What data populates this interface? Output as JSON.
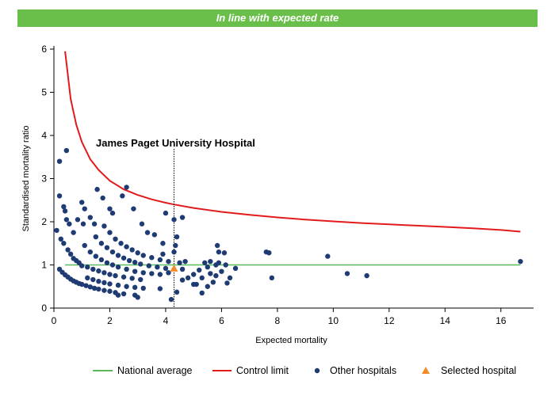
{
  "banner": {
    "text": "In line with expected rate",
    "color": "#6abf4b"
  },
  "colors": {
    "national_average": "#5cb85c",
    "control_limit": "#e31a1c",
    "other_hospitals": "#1f3b73",
    "selected_hospital": "#f28c28",
    "axis": "#000000"
  },
  "chart_data": {
    "type": "scatter",
    "title": "In line with expected rate",
    "xlabel": "Expected mortality",
    "ylabel": "Standardised mortality ratio",
    "xlim": [
      0,
      17
    ],
    "ylim": [
      0,
      6
    ],
    "xticks": [
      0,
      2,
      4,
      6,
      8,
      10,
      12,
      14,
      16
    ],
    "yticks": [
      0,
      1,
      2,
      3,
      4,
      5,
      6
    ],
    "grid": false,
    "legend_position": "bottom",
    "annotation": {
      "text": "James Paget University Hospital",
      "x": 4.3
    },
    "legend": [
      "National average",
      "Control limit",
      "Other hospitals",
      "Selected hospital"
    ],
    "national_average": {
      "name": "National average",
      "y": 1,
      "x_range": [
        0.4,
        16.7
      ]
    },
    "control_limit": {
      "name": "Control limit",
      "x": [
        0.4,
        0.6,
        0.8,
        1.0,
        1.3,
        1.6,
        2.0,
        2.5,
        3.0,
        3.5,
        4.0,
        4.3,
        5.0,
        6.0,
        7.0,
        8.0,
        9.0,
        10.0,
        11.0,
        12.0,
        13.0,
        14.0,
        15.0,
        16.0,
        16.7
      ],
      "y": [
        5.95,
        4.85,
        4.25,
        3.85,
        3.45,
        3.2,
        2.95,
        2.75,
        2.62,
        2.52,
        2.44,
        2.4,
        2.32,
        2.23,
        2.16,
        2.1,
        2.05,
        2.01,
        1.97,
        1.94,
        1.91,
        1.88,
        1.85,
        1.81,
        1.77
      ]
    },
    "selected_hospital": {
      "name": "Selected hospital",
      "x": 4.3,
      "y": 0.92
    },
    "other_hospitals": {
      "name": "Other hospitals",
      "points": [
        [
          0.2,
          3.4
        ],
        [
          0.45,
          3.65
        ],
        [
          0.2,
          2.6
        ],
        [
          0.35,
          2.35
        ],
        [
          0.4,
          2.25
        ],
        [
          0.45,
          2.05
        ],
        [
          0.55,
          1.95
        ],
        [
          0.7,
          1.75
        ],
        [
          0.85,
          2.05
        ],
        [
          1.0,
          2.45
        ],
        [
          1.1,
          2.3
        ],
        [
          1.05,
          1.95
        ],
        [
          1.3,
          2.1
        ],
        [
          1.45,
          1.95
        ],
        [
          1.55,
          2.75
        ],
        [
          1.75,
          2.55
        ],
        [
          2.0,
          2.3
        ],
        [
          2.1,
          2.2
        ],
        [
          2.45,
          2.6
        ],
        [
          2.6,
          2.8
        ],
        [
          2.85,
          2.3
        ],
        [
          3.15,
          1.95
        ],
        [
          3.35,
          1.75
        ],
        [
          3.6,
          1.7
        ],
        [
          3.9,
          1.5
        ],
        [
          4.0,
          2.2
        ],
        [
          4.3,
          2.05
        ],
        [
          4.6,
          2.1
        ],
        [
          4.4,
          1.65
        ],
        [
          4.35,
          1.45
        ],
        [
          0.1,
          1.8
        ],
        [
          0.25,
          1.6
        ],
        [
          0.35,
          1.5
        ],
        [
          0.5,
          1.35
        ],
        [
          0.6,
          1.25
        ],
        [
          0.7,
          1.15
        ],
        [
          0.8,
          1.1
        ],
        [
          0.9,
          1.05
        ],
        [
          1.0,
          0.98
        ],
        [
          1.2,
          0.95
        ],
        [
          1.4,
          0.9
        ],
        [
          1.6,
          0.86
        ],
        [
          1.8,
          0.82
        ],
        [
          2.0,
          0.78
        ],
        [
          2.2,
          0.75
        ],
        [
          2.5,
          0.72
        ],
        [
          2.8,
          0.69
        ],
        [
          3.1,
          0.66
        ],
        [
          0.2,
          0.9
        ],
        [
          0.3,
          0.83
        ],
        [
          0.4,
          0.77
        ],
        [
          0.5,
          0.72
        ],
        [
          0.6,
          0.67
        ],
        [
          0.7,
          0.63
        ],
        [
          0.8,
          0.6
        ],
        [
          0.9,
          0.57
        ],
        [
          1.0,
          0.55
        ],
        [
          1.15,
          0.52
        ],
        [
          1.3,
          0.49
        ],
        [
          1.45,
          0.46
        ],
        [
          1.6,
          0.44
        ],
        [
          1.8,
          0.41
        ],
        [
          2.0,
          0.39
        ],
        [
          2.2,
          0.36
        ],
        [
          2.5,
          0.33
        ],
        [
          2.9,
          0.3
        ],
        [
          1.1,
          1.45
        ],
        [
          1.3,
          1.3
        ],
        [
          1.5,
          1.2
        ],
        [
          1.7,
          1.12
        ],
        [
          1.9,
          1.05
        ],
        [
          2.1,
          1.0
        ],
        [
          2.3,
          0.95
        ],
        [
          2.6,
          0.9
        ],
        [
          2.9,
          0.85
        ],
        [
          3.2,
          0.82
        ],
        [
          3.5,
          0.8
        ],
        [
          3.8,
          0.78
        ],
        [
          1.5,
          1.65
        ],
        [
          1.7,
          1.5
        ],
        [
          1.9,
          1.4
        ],
        [
          2.1,
          1.3
        ],
        [
          2.3,
          1.22
        ],
        [
          2.5,
          1.16
        ],
        [
          2.7,
          1.1
        ],
        [
          2.9,
          1.06
        ],
        [
          3.1,
          1.02
        ],
        [
          3.4,
          0.98
        ],
        [
          3.7,
          0.95
        ],
        [
          4.0,
          0.92
        ],
        [
          1.8,
          1.9
        ],
        [
          2.0,
          1.75
        ],
        [
          2.2,
          1.6
        ],
        [
          2.4,
          1.5
        ],
        [
          2.6,
          1.42
        ],
        [
          2.8,
          1.35
        ],
        [
          3.0,
          1.28
        ],
        [
          3.2,
          1.22
        ],
        [
          3.5,
          1.17
        ],
        [
          3.8,
          1.12
        ],
        [
          4.1,
          1.08
        ],
        [
          1.2,
          0.7
        ],
        [
          1.4,
          0.66
        ],
        [
          1.6,
          0.62
        ],
        [
          1.8,
          0.59
        ],
        [
          2.0,
          0.56
        ],
        [
          2.3,
          0.53
        ],
        [
          2.6,
          0.5
        ],
        [
          2.9,
          0.48
        ],
        [
          3.2,
          0.46
        ],
        [
          3.0,
          0.25
        ],
        [
          2.3,
          0.3
        ],
        [
          3.8,
          0.45
        ],
        [
          4.2,
          0.2
        ],
        [
          4.4,
          0.37
        ],
        [
          4.6,
          0.65
        ],
        [
          4.8,
          0.7
        ],
        [
          4.5,
          1.05
        ],
        [
          4.7,
          1.08
        ],
        [
          4.6,
          0.9
        ],
        [
          4.1,
          0.82
        ],
        [
          3.9,
          1.25
        ],
        [
          4.3,
          1.3
        ],
        [
          5.0,
          0.55
        ],
        [
          5.3,
          0.35
        ],
        [
          5.5,
          0.5
        ],
        [
          5.2,
          0.88
        ],
        [
          5.4,
          1.05
        ],
        [
          5.5,
          0.95
        ],
        [
          5.6,
          0.8
        ],
        [
          5.6,
          1.08
        ],
        [
          5.7,
          0.6
        ],
        [
          5.8,
          1.0
        ],
        [
          5.9,
          1.05
        ],
        [
          5.85,
          1.45
        ],
        [
          5.9,
          1.3
        ],
        [
          6.0,
          0.85
        ],
        [
          6.1,
          1.28
        ],
        [
          6.2,
          0.58
        ],
        [
          6.3,
          0.7
        ],
        [
          6.5,
          0.92
        ],
        [
          5.1,
          0.55
        ],
        [
          5.3,
          0.7
        ],
        [
          5.0,
          0.78
        ],
        [
          5.8,
          0.75
        ],
        [
          6.15,
          1.0
        ],
        [
          7.6,
          1.3
        ],
        [
          7.7,
          1.28
        ],
        [
          7.8,
          0.7
        ],
        [
          9.8,
          1.2
        ],
        [
          10.5,
          0.8
        ],
        [
          11.2,
          0.75
        ],
        [
          16.7,
          1.08
        ]
      ]
    }
  }
}
